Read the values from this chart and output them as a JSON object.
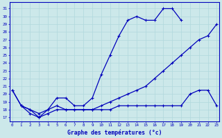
{
  "title": "Graphe des températures (°c)",
  "x_labels": [
    "0",
    "1",
    "2",
    "3",
    "4",
    "5",
    "6",
    "7",
    "8",
    "9",
    "10",
    "11",
    "12",
    "13",
    "14",
    "15",
    "16",
    "17",
    "18",
    "19",
    "20",
    "21",
    "22",
    "23"
  ],
  "x_values": [
    0,
    1,
    2,
    3,
    4,
    5,
    6,
    7,
    8,
    9,
    10,
    11,
    12,
    13,
    14,
    15,
    16,
    17,
    18,
    19,
    20,
    21,
    22,
    23
  ],
  "y_ticks": [
    17,
    18,
    19,
    20,
    21,
    22,
    23,
    24,
    25,
    26,
    27,
    28,
    29,
    30,
    31
  ],
  "ylim": [
    16.5,
    31.8
  ],
  "xlim": [
    -0.3,
    23.3
  ],
  "line_color": "#0000bb",
  "bg_color": "#cce8ea",
  "grid_color": "#b0d8dc",
  "series_max": [
    20.5,
    18.5,
    18.0,
    17.0,
    18.0,
    19.5,
    19.5,
    18.5,
    18.5,
    19.5,
    22.5,
    25.0,
    27.5,
    29.5,
    30.0,
    29.5,
    29.5,
    31.0,
    31.0,
    29.5,
    null,
    null,
    null,
    null
  ],
  "series_min": [
    20.5,
    18.5,
    18.0,
    17.5,
    18.0,
    18.5,
    18.0,
    18.0,
    18.0,
    18.0,
    18.5,
    19.0,
    19.5,
    20.0,
    20.5,
    21.0,
    22.0,
    23.0,
    24.0,
    25.0,
    26.0,
    27.0,
    27.5,
    29.0
  ],
  "series_cur": [
    null,
    18.5,
    17.5,
    17.0,
    17.5,
    18.0,
    18.0,
    18.0,
    18.0,
    18.0,
    18.0,
    18.0,
    18.5,
    18.5,
    18.5,
    18.5,
    18.5,
    18.5,
    18.5,
    18.5,
    20.0,
    20.5,
    20.5,
    18.5
  ]
}
